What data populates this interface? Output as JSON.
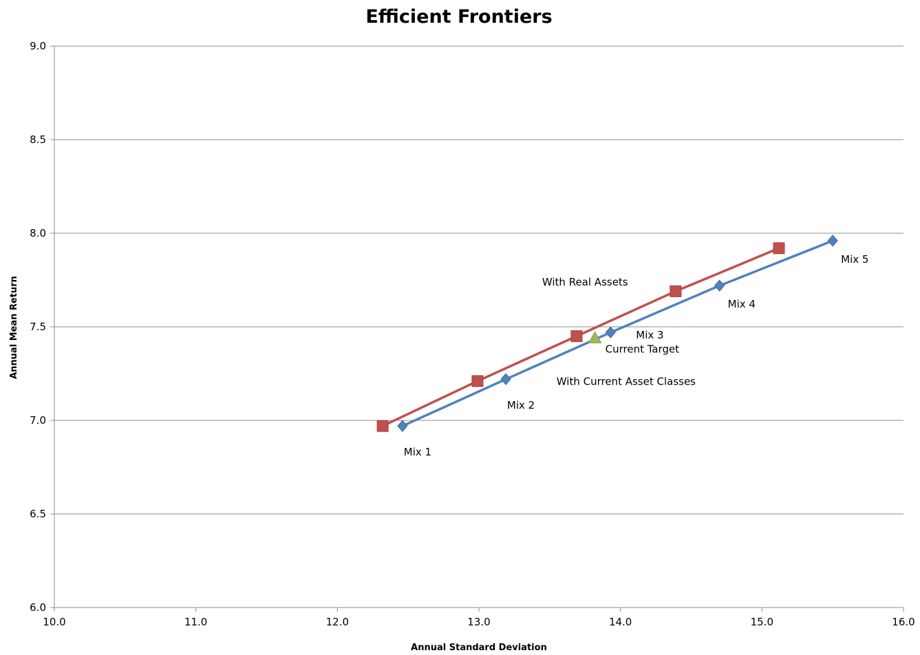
{
  "chart_data": {
    "type": "scatter",
    "title": "Efficient Frontiers",
    "xlabel": "Annual Standard Deviation",
    "ylabel": "Annual Mean Return",
    "xlim": [
      10.0,
      16.0
    ],
    "ylim": [
      6.0,
      9.0
    ],
    "x_ticks": [
      "10.0",
      "11.0",
      "12.0",
      "13.0",
      "14.0",
      "15.0",
      "16.0"
    ],
    "y_ticks": [
      "6.0",
      "6.5",
      "7.0",
      "7.5",
      "8.0",
      "8.5",
      "9.0"
    ],
    "grid": "horizontal",
    "series": [
      {
        "name": "With Real Assets",
        "color": "#c0504d",
        "marker": "square",
        "points": [
          {
            "x": 12.32,
            "y": 6.97
          },
          {
            "x": 12.99,
            "y": 7.21
          },
          {
            "x": 13.69,
            "y": 7.45
          },
          {
            "x": 14.39,
            "y": 7.69
          },
          {
            "x": 15.12,
            "y": 7.92
          }
        ]
      },
      {
        "name": "With Current Asset Classes",
        "color": "#4f81bd",
        "marker": "diamond",
        "points": [
          {
            "x": 12.46,
            "y": 6.97,
            "label": "Mix 1"
          },
          {
            "x": 13.19,
            "y": 7.22,
            "label": "Mix 2"
          },
          {
            "x": 13.93,
            "y": 7.47,
            "label": "Mix 3"
          },
          {
            "x": 14.7,
            "y": 7.72,
            "label": "Mix 4"
          },
          {
            "x": 15.5,
            "y": 7.96,
            "label": "Mix 5"
          }
        ]
      },
      {
        "name": "Current Target",
        "color": "#9bbb59",
        "marker": "triangle",
        "points": [
          {
            "x": 13.82,
            "y": 7.44,
            "label": "Current Target"
          }
        ]
      }
    ],
    "annotations": [
      {
        "text": "With Real Assets",
        "x": 13.75,
        "y": 7.72
      },
      {
        "text": "With Current Asset Classes",
        "x": 14.04,
        "y": 7.19
      }
    ]
  }
}
